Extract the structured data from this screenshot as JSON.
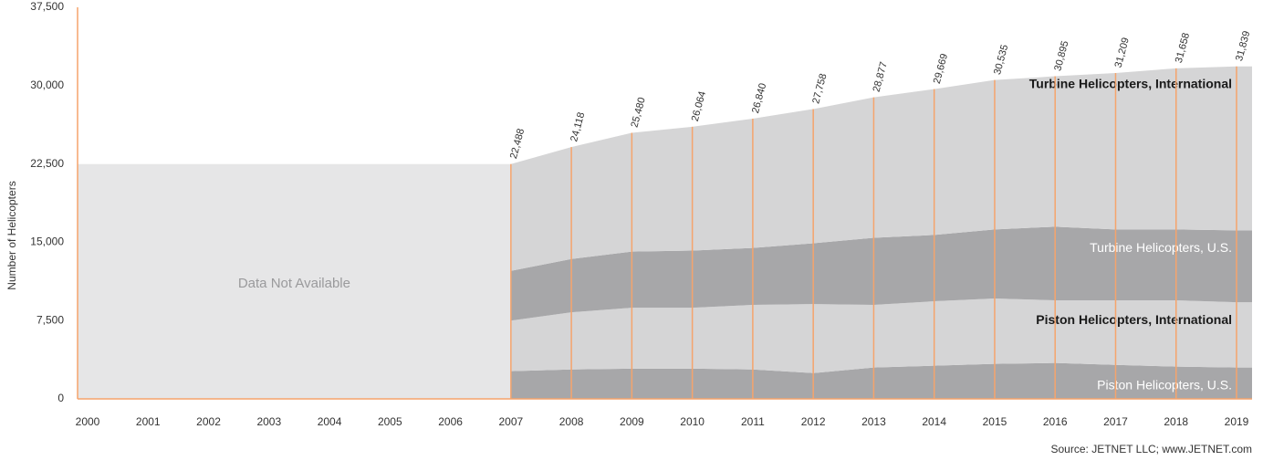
{
  "chart_data": {
    "type": "stacked_area",
    "y_label": "Number of Helicopters",
    "source": "Source: JETNET LLC; www.JETNET.com",
    "annotation": "Data Not Available",
    "categories": [
      "2000",
      "2001",
      "2002",
      "2003",
      "2004",
      "2005",
      "2006",
      "2007",
      "2008",
      "2009",
      "2010",
      "2011",
      "2012",
      "2013",
      "2014",
      "2015",
      "2016",
      "2017",
      "2018",
      "2019"
    ],
    "series": [
      {
        "name": "Piston Helicopters, U.S.",
        "color": "#a7a7a9",
        "label_color": "#ffffff",
        "values": [
          null,
          null,
          null,
          null,
          null,
          null,
          null,
          2650,
          2820,
          2900,
          2900,
          2820,
          2470,
          3000,
          3180,
          3350,
          3440,
          3260,
          3090,
          3000
        ]
      },
      {
        "name": "Piston Helicopters, International",
        "color": "#d5d5d6",
        "label_color": "#1a1a1a",
        "values": [
          null,
          null,
          null,
          null,
          null,
          null,
          null,
          4850,
          5470,
          5830,
          5830,
          6180,
          6610,
          6000,
          6170,
          6260,
          6000,
          6180,
          6350,
          6260
        ]
      },
      {
        "name": "Turbine Helicopters, U.S.",
        "color": "#a7a7a9",
        "label_color": "#ffffff",
        "values": [
          null,
          null,
          null,
          null,
          null,
          null,
          null,
          4760,
          5110,
          5380,
          5470,
          5460,
          5820,
          6430,
          6350,
          6620,
          7050,
          6790,
          6790,
          6880
        ]
      },
      {
        "name": "Turbine Helicopters, International",
        "color": "#d5d5d6",
        "label_color": "#1a1a1a",
        "values": [
          null,
          null,
          null,
          null,
          null,
          null,
          null,
          10228,
          10718,
          11370,
          11864,
          12380,
          12858,
          13447,
          13969,
          14305,
          14405,
          14979,
          15428,
          15699
        ]
      }
    ],
    "totals": [
      null,
      null,
      null,
      null,
      null,
      null,
      null,
      22488,
      24118,
      25480,
      26064,
      26840,
      27758,
      28877,
      29669,
      30535,
      30895,
      31209,
      31658,
      31839
    ],
    "total_labels": [
      null,
      null,
      null,
      null,
      null,
      null,
      null,
      "22,488",
      "24,118",
      "25,480",
      "26,064",
      "26,840",
      "27,758",
      "28,877",
      "29,669",
      "30,535",
      "30,895",
      "31,209",
      "31,658",
      "31,839"
    ],
    "ylim": [
      0,
      37500
    ],
    "yticks": [
      0,
      {
        "value": 7500,
        "label": "7,500"
      },
      {
        "value": 15000,
        "label": "15,000"
      },
      {
        "value": 22500,
        "label": "22,500"
      },
      {
        "value": 30000,
        "label": "30,000"
      },
      {
        "value": 37500,
        "label": "37,500"
      }
    ],
    "accent_color": "#f5a46c",
    "na_color": "#e6e6e7"
  }
}
